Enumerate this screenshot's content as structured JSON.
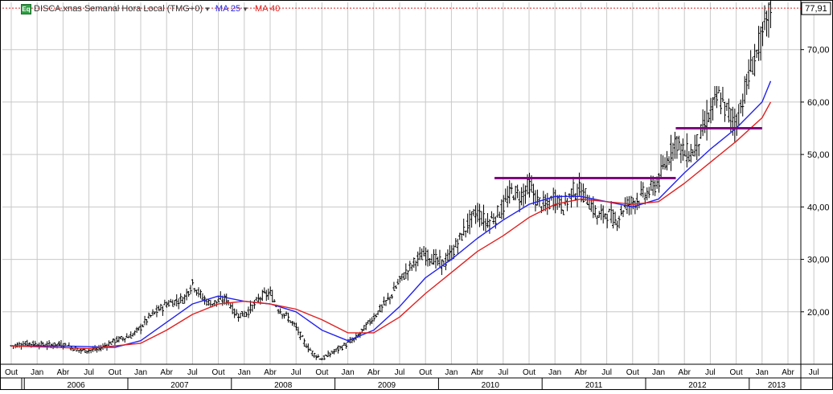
{
  "legend": {
    "icon_label": "Eq",
    "symbol": "DISCA.xnas Semanal Hora Local (TMG+0)",
    "ma25_label": "MA 25",
    "ma40_label": "MA 40"
  },
  "last_price_label": "77,91",
  "colors": {
    "price_bars": "#000000",
    "ma25": "#2222ee",
    "ma40": "#e02020",
    "resistance": "#800080",
    "last_price_line": "#e02020",
    "grid": "#c8c8c8"
  },
  "chart_data": {
    "type": "line",
    "title": "DISCA.xnas Semanal Hora Local (TMG+0)",
    "frequency": "weekly",
    "grid": true,
    "legend_position": "top-left",
    "ylim": [
      10,
      79
    ],
    "y_ticks": [
      "20,00",
      "30,00",
      "40,00",
      "50,00",
      "60,00",
      "70,00"
    ],
    "last_price": 77.91,
    "x_month_labels": [
      "Out",
      "Jan",
      "Abr",
      "Jul",
      "Out",
      "Jan",
      "Abr",
      "Jul",
      "Out",
      "Jan",
      "Abr",
      "Jul",
      "Out",
      "Jan",
      "Abr",
      "Jul",
      "Out",
      "Jan",
      "Abr",
      "Jul",
      "Out",
      "Jan",
      "Abr",
      "Jul",
      "Out",
      "Jan",
      "Abr",
      "Jul",
      "Out",
      "Jan",
      "Abr",
      "Jul",
      "Out",
      "Jan"
    ],
    "x_year_labels": [
      "2006",
      "2007",
      "2008",
      "2009",
      "2010",
      "2011",
      "2012",
      "2013"
    ],
    "price_path": [
      {
        "date": "2005-10",
        "value": 13.5
      },
      {
        "date": "2005-12",
        "value": 14.0
      },
      {
        "date": "2006-02",
        "value": 13.6
      },
      {
        "date": "2006-04",
        "value": 13.8
      },
      {
        "date": "2006-06",
        "value": 12.6
      },
      {
        "date": "2006-08",
        "value": 12.8
      },
      {
        "date": "2006-10",
        "value": 14.5
      },
      {
        "date": "2006-12",
        "value": 15.5
      },
      {
        "date": "2007-01",
        "value": 17.0
      },
      {
        "date": "2007-02",
        "value": 19.0
      },
      {
        "date": "2007-04",
        "value": 21.5
      },
      {
        "date": "2007-06",
        "value": 22.5
      },
      {
        "date": "2007-07",
        "value": 25.5
      },
      {
        "date": "2007-08",
        "value": 23.0
      },
      {
        "date": "2007-09",
        "value": 21.5
      },
      {
        "date": "2007-10",
        "value": 22.0
      },
      {
        "date": "2007-11",
        "value": 22.5
      },
      {
        "date": "2007-12",
        "value": 19.5
      },
      {
        "date": "2008-01",
        "value": 19.5
      },
      {
        "date": "2008-02",
        "value": 21.0
      },
      {
        "date": "2008-03",
        "value": 23.0
      },
      {
        "date": "2008-04",
        "value": 23.5
      },
      {
        "date": "2008-05",
        "value": 20.5
      },
      {
        "date": "2008-06",
        "value": 19.0
      },
      {
        "date": "2008-07",
        "value": 17.0
      },
      {
        "date": "2008-08",
        "value": 14.0
      },
      {
        "date": "2008-09",
        "value": 12.0
      },
      {
        "date": "2008-10",
        "value": 11.0
      },
      {
        "date": "2008-11",
        "value": 12.0
      },
      {
        "date": "2008-12",
        "value": 13.0
      },
      {
        "date": "2009-01",
        "value": 14.0
      },
      {
        "date": "2009-02",
        "value": 15.0
      },
      {
        "date": "2009-03",
        "value": 17.0
      },
      {
        "date": "2009-04",
        "value": 19.0
      },
      {
        "date": "2009-05",
        "value": 21.0
      },
      {
        "date": "2009-06",
        "value": 23.0
      },
      {
        "date": "2009-07",
        "value": 26.0
      },
      {
        "date": "2009-08",
        "value": 28.0
      },
      {
        "date": "2009-09",
        "value": 30.0
      },
      {
        "date": "2009-10",
        "value": 31.0
      },
      {
        "date": "2009-11",
        "value": 30.0
      },
      {
        "date": "2009-12",
        "value": 29.0
      },
      {
        "date": "2010-01",
        "value": 31.0
      },
      {
        "date": "2010-02",
        "value": 34.0
      },
      {
        "date": "2010-03",
        "value": 37.0
      },
      {
        "date": "2010-04",
        "value": 39.0
      },
      {
        "date": "2010-05",
        "value": 37.0
      },
      {
        "date": "2010-06",
        "value": 38.0
      },
      {
        "date": "2010-07",
        "value": 40.0
      },
      {
        "date": "2010-08",
        "value": 43.0
      },
      {
        "date": "2010-09",
        "value": 42.0
      },
      {
        "date": "2010-10",
        "value": 44.0
      },
      {
        "date": "2010-11",
        "value": 41.0
      },
      {
        "date": "2010-12",
        "value": 40.0
      },
      {
        "date": "2011-01",
        "value": 42.0
      },
      {
        "date": "2011-02",
        "value": 40.0
      },
      {
        "date": "2011-03",
        "value": 43.0
      },
      {
        "date": "2011-04",
        "value": 43.0
      },
      {
        "date": "2011-05",
        "value": 41.0
      },
      {
        "date": "2011-06",
        "value": 38.0
      },
      {
        "date": "2011-07",
        "value": 39.0
      },
      {
        "date": "2011-08",
        "value": 37.0
      },
      {
        "date": "2011-09",
        "value": 40.0
      },
      {
        "date": "2011-10",
        "value": 41.0
      },
      {
        "date": "2011-11",
        "value": 42.0
      },
      {
        "date": "2011-12",
        "value": 43.0
      },
      {
        "date": "2012-01",
        "value": 45.0
      },
      {
        "date": "2012-02",
        "value": 49.0
      },
      {
        "date": "2012-03",
        "value": 53.0
      },
      {
        "date": "2012-04",
        "value": 50.0
      },
      {
        "date": "2012-05",
        "value": 50.5
      },
      {
        "date": "2012-06",
        "value": 54.0
      },
      {
        "date": "2012-07",
        "value": 58.0
      },
      {
        "date": "2012-08",
        "value": 61.0
      },
      {
        "date": "2012-09",
        "value": 58.0
      },
      {
        "date": "2012-10",
        "value": 56.0
      },
      {
        "date": "2012-11",
        "value": 62.0
      },
      {
        "date": "2012-12",
        "value": 68.0
      },
      {
        "date": "2013-01",
        "value": 72.0
      },
      {
        "date": "2013-02",
        "value": 77.91
      }
    ],
    "series": [
      {
        "name": "MA 25",
        "values": [
          {
            "date": "2005-10",
            "value": 13.5
          },
          {
            "date": "2006-04",
            "value": 13.5
          },
          {
            "date": "2006-10",
            "value": 13.2
          },
          {
            "date": "2007-01",
            "value": 14.5
          },
          {
            "date": "2007-04",
            "value": 18.0
          },
          {
            "date": "2007-07",
            "value": 21.5
          },
          {
            "date": "2007-10",
            "value": 23.0
          },
          {
            "date": "2008-01",
            "value": 22.0
          },
          {
            "date": "2008-04",
            "value": 21.5
          },
          {
            "date": "2008-07",
            "value": 20.0
          },
          {
            "date": "2008-10",
            "value": 16.5
          },
          {
            "date": "2009-01",
            "value": 14.5
          },
          {
            "date": "2009-04",
            "value": 16.5
          },
          {
            "date": "2009-07",
            "value": 21.0
          },
          {
            "date": "2009-10",
            "value": 26.5
          },
          {
            "date": "2010-01",
            "value": 30.0
          },
          {
            "date": "2010-04",
            "value": 34.0
          },
          {
            "date": "2010-07",
            "value": 37.5
          },
          {
            "date": "2010-10",
            "value": 40.5
          },
          {
            "date": "2011-01",
            "value": 42.0
          },
          {
            "date": "2011-04",
            "value": 42.0
          },
          {
            "date": "2011-07",
            "value": 41.0
          },
          {
            "date": "2011-10",
            "value": 40.0
          },
          {
            "date": "2012-01",
            "value": 41.5
          },
          {
            "date": "2012-04",
            "value": 46.5
          },
          {
            "date": "2012-07",
            "value": 51.0
          },
          {
            "date": "2012-10",
            "value": 55.0
          },
          {
            "date": "2013-01",
            "value": 60.0
          },
          {
            "date": "2013-02",
            "value": 64.0
          }
        ]
      },
      {
        "name": "MA 40",
        "values": [
          {
            "date": "2005-10",
            "value": 13.5
          },
          {
            "date": "2006-07",
            "value": 13.0
          },
          {
            "date": "2007-01",
            "value": 14.0
          },
          {
            "date": "2007-04",
            "value": 16.5
          },
          {
            "date": "2007-07",
            "value": 19.5
          },
          {
            "date": "2007-10",
            "value": 21.5
          },
          {
            "date": "2008-01",
            "value": 22.0
          },
          {
            "date": "2008-04",
            "value": 21.5
          },
          {
            "date": "2008-07",
            "value": 20.5
          },
          {
            "date": "2008-10",
            "value": 18.5
          },
          {
            "date": "2009-01",
            "value": 16.0
          },
          {
            "date": "2009-04",
            "value": 16.0
          },
          {
            "date": "2009-07",
            "value": 19.0
          },
          {
            "date": "2009-10",
            "value": 23.5
          },
          {
            "date": "2010-01",
            "value": 27.5
          },
          {
            "date": "2010-04",
            "value": 31.5
          },
          {
            "date": "2010-07",
            "value": 34.5
          },
          {
            "date": "2010-10",
            "value": 38.0
          },
          {
            "date": "2011-01",
            "value": 40.5
          },
          {
            "date": "2011-04",
            "value": 41.5
          },
          {
            "date": "2011-07",
            "value": 41.0
          },
          {
            "date": "2011-10",
            "value": 40.5
          },
          {
            "date": "2012-01",
            "value": 41.0
          },
          {
            "date": "2012-04",
            "value": 44.5
          },
          {
            "date": "2012-07",
            "value": 48.5
          },
          {
            "date": "2012-10",
            "value": 52.5
          },
          {
            "date": "2013-01",
            "value": 57.0
          },
          {
            "date": "2013-02",
            "value": 60.0
          }
        ]
      }
    ],
    "annotations": [
      {
        "type": "horizontal_line",
        "value": 45.5,
        "from": "2010-06",
        "to": "2012-03"
      },
      {
        "type": "horizontal_line",
        "value": 55.0,
        "from": "2012-03",
        "to": "2013-01"
      }
    ]
  }
}
